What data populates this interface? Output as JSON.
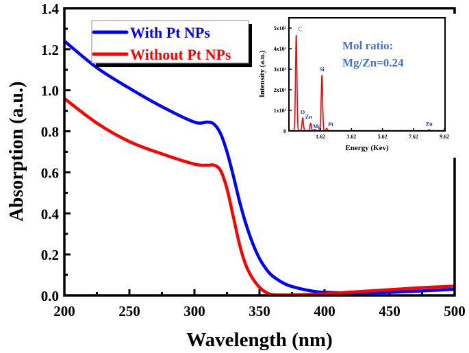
{
  "chart_data": [
    {
      "type": "line",
      "xlabel": "Wavelength (nm)",
      "ylabel": "Absorption (a.u.)",
      "xlim": [
        200,
        500
      ],
      "ylim": [
        0,
        1.4
      ],
      "xticks": [
        "200",
        "250",
        "300",
        "350",
        "400",
        "450",
        "500"
      ],
      "yticks": [
        "0.0",
        "0.2",
        "0.4",
        "0.6",
        "0.8",
        "1.0",
        "1.2",
        "1.4"
      ],
      "grid": false,
      "legend": "top-left",
      "series": [
        {
          "name": "With Pt NPs",
          "color": "#0000ff",
          "x": [
            200,
            225,
            250,
            275,
            300,
            310,
            315,
            320,
            325,
            330,
            335,
            340,
            345,
            350,
            355,
            360,
            370,
            380,
            390,
            400,
            425,
            450,
            475,
            500
          ],
          "y": [
            1.24,
            1.11,
            1.01,
            0.92,
            0.845,
            0.845,
            0.835,
            0.79,
            0.7,
            0.58,
            0.45,
            0.34,
            0.25,
            0.18,
            0.13,
            0.095,
            0.055,
            0.035,
            0.022,
            0.015,
            0.012,
            0.015,
            0.022,
            0.03
          ]
        },
        {
          "name": "Without Pt NPs",
          "color": "#ff0000",
          "x": [
            200,
            225,
            250,
            275,
            300,
            310,
            315,
            320,
            325,
            330,
            335,
            340,
            345,
            350,
            355,
            360,
            370,
            380,
            400,
            425,
            450,
            475,
            500
          ],
          "y": [
            0.96,
            0.84,
            0.75,
            0.69,
            0.64,
            0.635,
            0.635,
            0.61,
            0.52,
            0.38,
            0.24,
            0.14,
            0.08,
            0.04,
            0.015,
            0.004,
            0.002,
            0.003,
            0.008,
            0.018,
            0.028,
            0.038,
            0.045
          ]
        }
      ]
    },
    {
      "type": "line",
      "xlabel": "Energy (Kev)",
      "ylabel": "Intensity (a.u.)",
      "xlim": [
        -0.42,
        9.66
      ],
      "ylim": [
        0,
        5500
      ],
      "xticks": [
        "1.62",
        "3.62",
        "5.62",
        "7.62",
        "9.62"
      ],
      "yticks": [
        "0",
        "1x10³",
        "2x10³",
        "3x10³",
        "4x10³",
        "5x10³"
      ],
      "color": "#ff0000",
      "peaks": [
        {
          "label": "C",
          "energy": 0.05,
          "intensity": 4650
        },
        {
          "label": "O",
          "energy": 0.47,
          "intensity": 620
        },
        {
          "label": "Zn",
          "energy": 0.98,
          "intensity": 350
        },
        {
          "label": "Mg",
          "energy": 1.25,
          "intensity": 60
        },
        {
          "label": "Si",
          "energy": 1.71,
          "intensity": 2700
        },
        {
          "label": "Pt",
          "energy": 2.02,
          "intensity": 110
        },
        {
          "label": "Zn",
          "energy": 8.63,
          "intensity": 45
        }
      ],
      "annotation": [
        "Mol ratio:",
        "Mg/Zn=0.24"
      ],
      "annotation_color": "#4472c4",
      "label_color": "#2424c8"
    }
  ]
}
